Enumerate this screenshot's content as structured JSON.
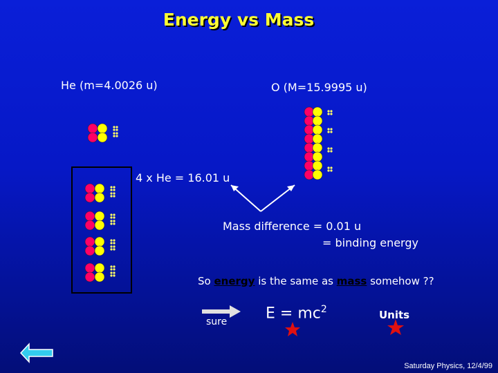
{
  "title": "Energy vs Mass",
  "labels": {
    "helium": "He (m=4.0026 u)",
    "oxygen": "O (M=15.9995 u)",
    "four_he": "4 x He = 16.01 u",
    "mass_diff_line1": "Mass difference = 0.01 u",
    "mass_diff_line2": "= binding energy",
    "equation_prefix": "E = mc",
    "equation_exp": "2",
    "units": "Units",
    "sure": "sure",
    "footer": "Saturday Physics, 12/4/99"
  },
  "conclusion": {
    "prefix": "So ",
    "word1": "energy",
    "middle": " is the same as ",
    "word2": "mass",
    "suffix": " somehow ??"
  },
  "colors": {
    "proton": "#ff0066",
    "neutron": "#ffff00",
    "electron": "#ffff66",
    "star": "#e01010",
    "back_arrow": "#33ccee"
  }
}
